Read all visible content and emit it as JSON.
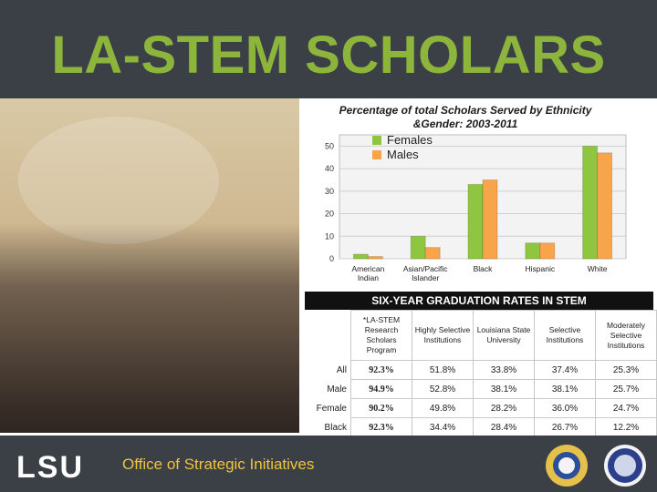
{
  "header": {
    "title": "LA-STEM SCHOLARS"
  },
  "chart_data": {
    "type": "bar",
    "title": "Percentage of total Scholars Served by Ethnicity &Gender: 2003-2011",
    "categories": [
      "American Indian",
      "Asian/Pacific Islander",
      "Black",
      "Hispanic",
      "White"
    ],
    "series": [
      {
        "name": "Females",
        "values": [
          2,
          10,
          33,
          7,
          50
        ]
      },
      {
        "name": "Males",
        "values": [
          1,
          5,
          35,
          7,
          47
        ]
      }
    ],
    "yticks": [
      0,
      10,
      20,
      30,
      40,
      50
    ],
    "ylim": [
      0,
      55
    ],
    "grid": true,
    "legend_position": "top-left",
    "colors": {
      "Females": "#8ec63f",
      "Males": "#f7a44a"
    }
  },
  "graduation_table": {
    "title": "SIX-YEAR GRADUATION RATES IN STEM",
    "columns": [
      "*LA-STEM Research Scholars Program",
      "Highly Selective Institutions",
      "Louisiana State University",
      "Selective Institutions",
      "Moderately Selective Institutions"
    ],
    "rows": [
      {
        "label": "All",
        "values": [
          "92.3%",
          "51.8%",
          "33.8%",
          "37.4%",
          "25.3%"
        ]
      },
      {
        "label": "Male",
        "values": [
          "94.9%",
          "52.8%",
          "38.1%",
          "38.1%",
          "25.7%"
        ]
      },
      {
        "label": "Female",
        "values": [
          "90.2%",
          "49.8%",
          "28.2%",
          "36.0%",
          "24.7%"
        ]
      },
      {
        "label": "Black",
        "values": [
          "92.3%",
          "34.4%",
          "28.4%",
          "26.7%",
          "12.2%"
        ]
      }
    ]
  },
  "footer": {
    "logo_text": "LSU",
    "office_text": "Office of Strategic Initiatives",
    "seal_left_icon": "nsf-seal-icon",
    "seal_right_icon": "board-seal-icon"
  }
}
